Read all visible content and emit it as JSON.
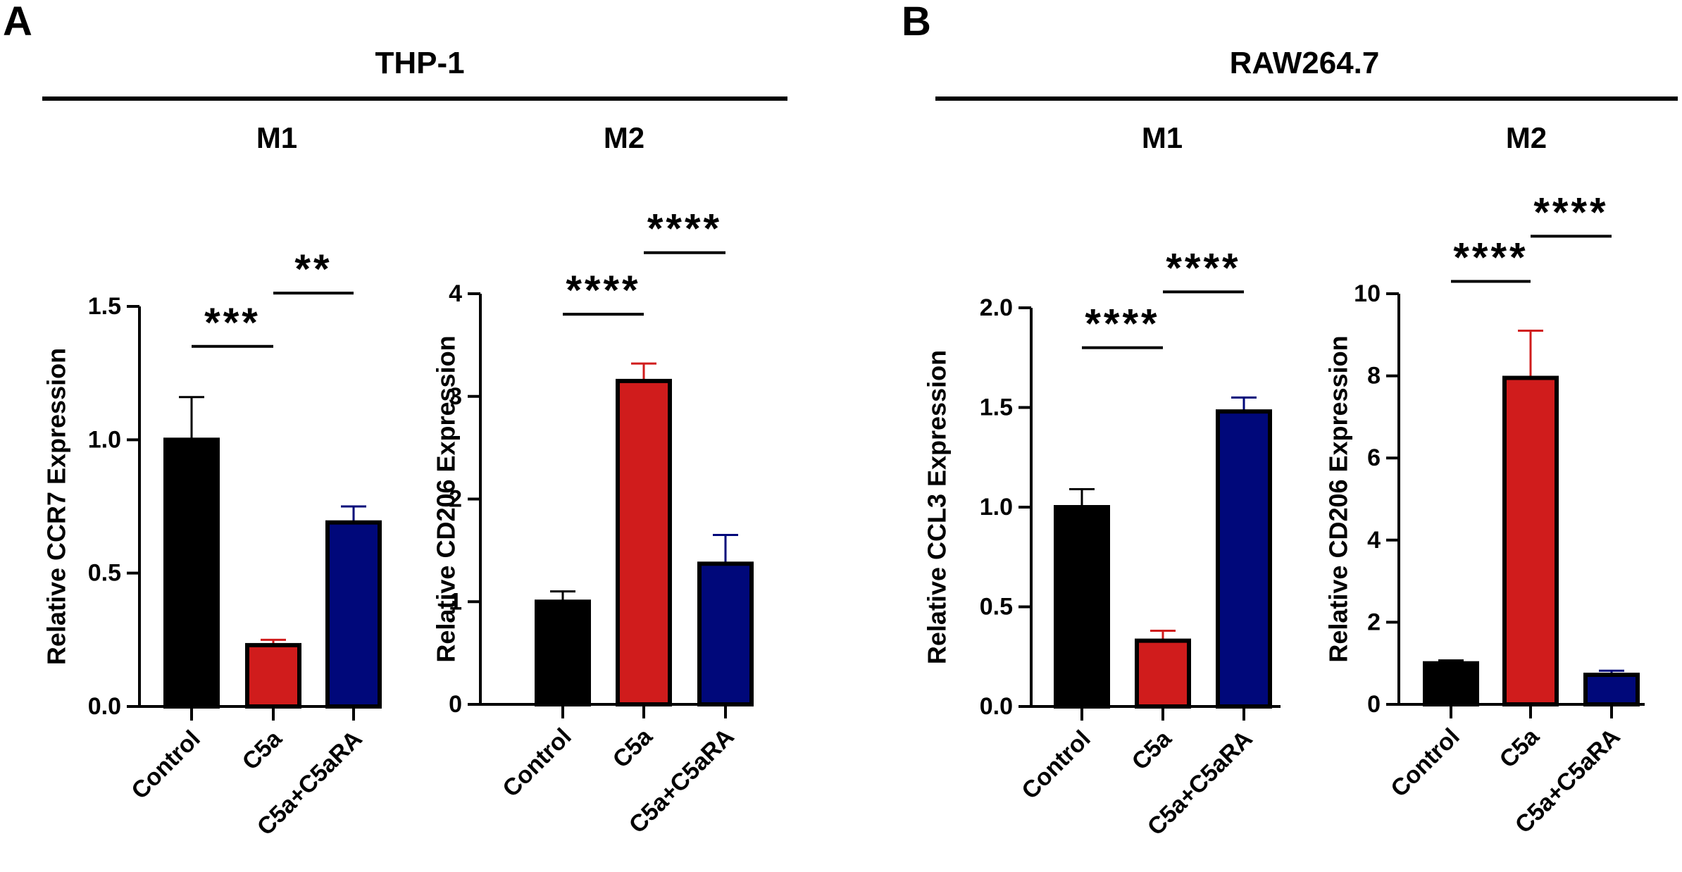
{
  "panels": [
    {
      "letter": "A",
      "title": "THP-1"
    },
    {
      "letter": "B",
      "title": "RAW264.7"
    }
  ],
  "chart_data": [
    {
      "type": "bar",
      "panel": "A",
      "subtitle": "M1",
      "ylabel": "Relative CCR7 Expression",
      "categories": [
        "Control",
        "C5a",
        "C5a+C5aRA"
      ],
      "values": [
        1.0,
        0.23,
        0.69
      ],
      "errors": [
        0.16,
        0.02,
        0.06
      ],
      "colors": [
        "#000000",
        "#d01c1c",
        "#00087a"
      ],
      "ylim": [
        0,
        1.5
      ],
      "yticks": [
        0.0,
        0.5,
        1.0,
        1.5
      ],
      "ytick_labels": [
        "0.0",
        "0.5",
        "1.0",
        "1.5"
      ],
      "significance": [
        {
          "from": 0,
          "to": 1,
          "label": "***",
          "level": 1.35
        },
        {
          "from": 1,
          "to": 2,
          "label": "**",
          "level": 1.55
        }
      ]
    },
    {
      "type": "bar",
      "panel": "A",
      "subtitle": "M2",
      "ylabel": "Relative CD206 Expression",
      "categories": [
        "Control",
        "C5a",
        "C5a+C5aRA"
      ],
      "values": [
        1.0,
        3.15,
        1.37
      ],
      "errors": [
        0.1,
        0.17,
        0.28
      ],
      "colors": [
        "#000000",
        "#d01c1c",
        "#00087a"
      ],
      "ylim": [
        0,
        4
      ],
      "yticks": [
        0,
        1,
        2,
        3,
        4
      ],
      "ytick_labels": [
        "0",
        "1",
        "2",
        "3",
        "4"
      ],
      "significance": [
        {
          "from": 0,
          "to": 1,
          "label": "****",
          "level": 3.8
        },
        {
          "from": 1,
          "to": 2,
          "label": "****",
          "level": 4.4
        }
      ]
    },
    {
      "type": "bar",
      "panel": "B",
      "subtitle": "M1",
      "ylabel": "Relative CCL3 Expression",
      "categories": [
        "Control",
        "C5a",
        "C5a+C5aRA"
      ],
      "values": [
        1.0,
        0.33,
        1.48
      ],
      "errors": [
        0.09,
        0.05,
        0.07
      ],
      "colors": [
        "#000000",
        "#d01c1c",
        "#00087a"
      ],
      "ylim": [
        0,
        2.0
      ],
      "yticks": [
        0.0,
        0.5,
        1.0,
        1.5,
        2.0
      ],
      "ytick_labels": [
        "0.0",
        "0.5",
        "1.0",
        "1.5",
        "2.0"
      ],
      "significance": [
        {
          "from": 0,
          "to": 1,
          "label": "****",
          "level": 1.8
        },
        {
          "from": 1,
          "to": 2,
          "label": "****",
          "level": 2.08
        }
      ]
    },
    {
      "type": "bar",
      "panel": "B",
      "subtitle": "M2",
      "ylabel": "Relative CD206 Expression",
      "categories": [
        "Control",
        "C5a",
        "C5a+C5aRA"
      ],
      "values": [
        1.0,
        7.95,
        0.72
      ],
      "errors": [
        0.07,
        1.15,
        0.1
      ],
      "colors": [
        "#000000",
        "#d01c1c",
        "#00087a"
      ],
      "ylim": [
        0,
        10
      ],
      "yticks": [
        0,
        2,
        4,
        6,
        8,
        10
      ],
      "ytick_labels": [
        "0",
        "2",
        "4",
        "6",
        "8",
        "10"
      ],
      "significance": [
        {
          "from": 0,
          "to": 1,
          "label": "****",
          "level": 10.3
        },
        {
          "from": 1,
          "to": 2,
          "label": "****",
          "level": 11.4
        }
      ]
    }
  ]
}
